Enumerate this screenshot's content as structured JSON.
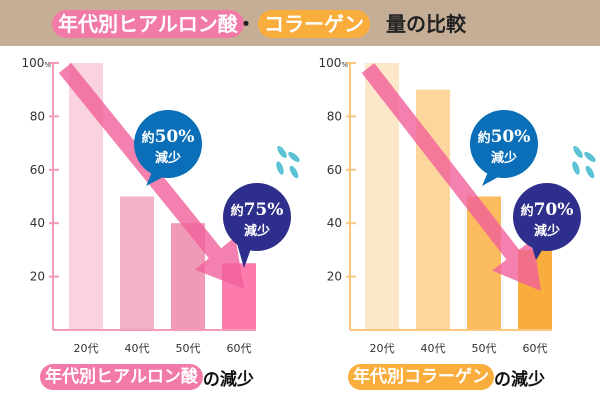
{
  "header": {
    "title_part1": "年代別ヒアルロン酸",
    "separator": "・",
    "title_part2": "コラーゲン",
    "title_suffix": "量の比較"
  },
  "colors": {
    "header_bg": "#c6ae96",
    "hyaluronic_accent": "#f27aa8",
    "collagen_accent": "#f9ad3d",
    "arrow": "#f0609a",
    "bubble_blue": "#0a6fb8",
    "bubble_navy": "#2e2e8c",
    "drops": "#5cc3d6"
  },
  "chart_data": [
    {
      "type": "bar",
      "title": "年代別ヒアルロン酸の減少",
      "caption_tag": "年代別ヒアルロン酸",
      "caption_rest": "の減少",
      "categories": [
        "20代",
        "40代",
        "50代",
        "60代"
      ],
      "values": [
        100,
        50,
        40,
        25
      ],
      "bar_colors": [
        "#f9d3dd",
        "#f1b2c6",
        "#f09ab8",
        "#fd7aad"
      ],
      "axis_color": "#f49bbd",
      "ylim": [
        0,
        100
      ],
      "yticks": [
        20,
        40,
        60,
        80,
        100
      ],
      "ytick_labels": [
        "20",
        "40",
        "60",
        "80",
        "100"
      ],
      "ytick_unit": "%",
      "xlabel": "",
      "ylabel": "",
      "grid": false,
      "annotations": [
        {
          "line1_prefix": "約",
          "line1_value": "50%",
          "line2": "減少",
          "style": "blue",
          "points_to": "40代"
        },
        {
          "line1_prefix": "約",
          "line1_value": "75%",
          "line2": "減少",
          "style": "navy",
          "points_to": "60代"
        }
      ]
    },
    {
      "type": "bar",
      "title": "年代別コラーゲンの減少",
      "caption_tag": "年代別コラーゲン",
      "caption_rest": "の減少",
      "categories": [
        "20代",
        "40代",
        "50代",
        "60代"
      ],
      "values": [
        100,
        90,
        50,
        30
      ],
      "bar_colors": [
        "#fde7c9",
        "#fdd69d",
        "#fbbb5f",
        "#f9ad3d"
      ],
      "axis_color": "#fbc77d",
      "ylim": [
        0,
        100
      ],
      "yticks": [
        20,
        40,
        60,
        80,
        100
      ],
      "ytick_labels": [
        "20",
        "40",
        "60",
        "80",
        "100"
      ],
      "ytick_unit": "%",
      "xlabel": "",
      "ylabel": "",
      "grid": false,
      "annotations": [
        {
          "line1_prefix": "約",
          "line1_value": "50%",
          "line2": "減少",
          "style": "blue",
          "points_to": "50代"
        },
        {
          "line1_prefix": "約",
          "line1_value": "70%",
          "line2": "減少",
          "style": "navy",
          "points_to": "60代"
        }
      ]
    }
  ]
}
